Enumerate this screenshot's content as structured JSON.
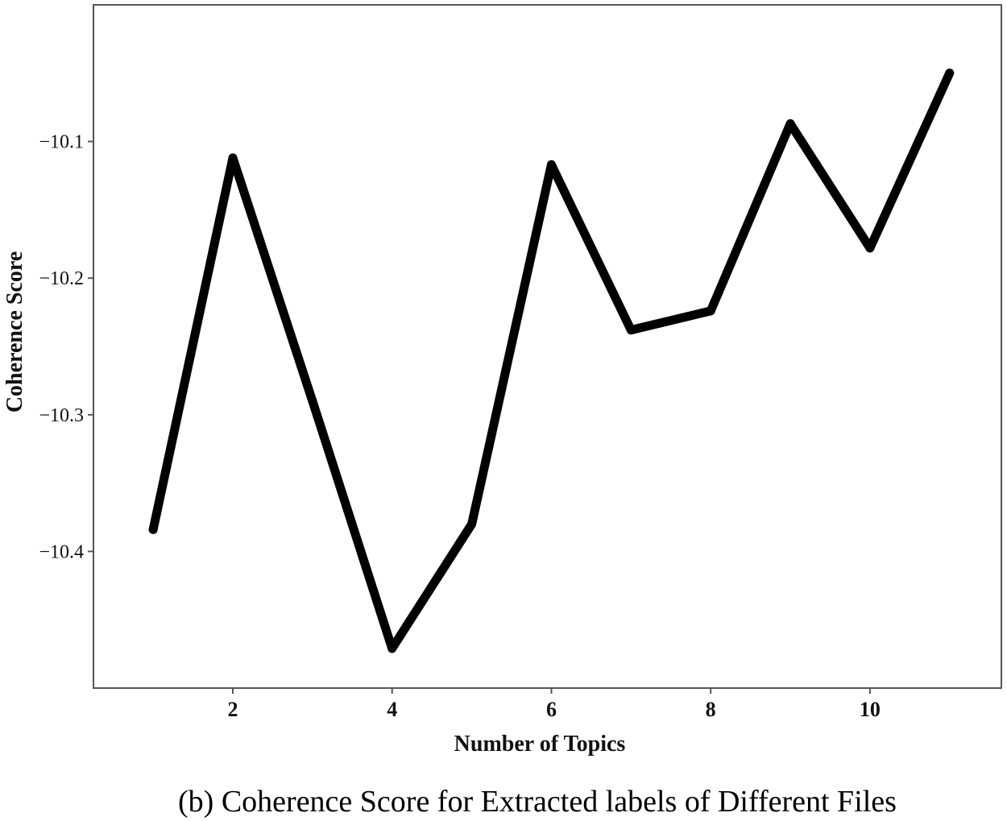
{
  "chart_data": {
    "type": "line",
    "title": "",
    "caption": "(b) Coherence Score for Extracted labels of Different Files",
    "xlabel": "Number of Topics",
    "ylabel": "Coherence Score",
    "x": [
      1,
      2,
      3,
      4,
      5,
      6,
      7,
      8,
      9,
      10,
      11
    ],
    "series": [
      {
        "values": [
          -10.384,
          -10.112,
          -10.29,
          -10.471,
          -10.38,
          -10.117,
          -10.238,
          -10.224,
          -10.087,
          -10.178,
          -10.05
        ]
      }
    ],
    "xlim": [
      0.25,
      11.65
    ],
    "ylim": [
      -10.5,
      -10.0
    ],
    "xticks": [
      2,
      4,
      6,
      8,
      10
    ],
    "xtick_labels": [
      "2",
      "4",
      "6",
      "8",
      "10"
    ],
    "yticks": [
      -10.1,
      -10.2,
      -10.3,
      -10.4
    ],
    "ytick_labels": [
      "-10.1",
      "-10.2",
      "-10.3",
      "-10.4"
    ],
    "grid": false,
    "legend": "none",
    "line_color": "#000000",
    "frame_color": "#555555"
  }
}
